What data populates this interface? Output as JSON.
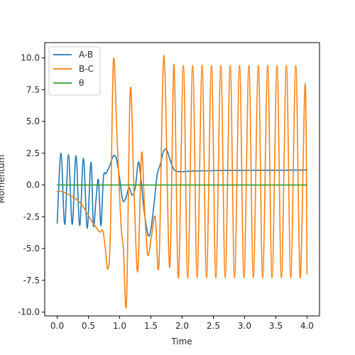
{
  "chart_data": {
    "type": "line",
    "title": "",
    "xlabel": "Time",
    "ylabel": "Momentum",
    "xlim": [
      -0.2,
      4.2
    ],
    "ylim": [
      -10.3,
      11.2
    ],
    "xticks": [
      "0.0",
      "0.5",
      "1.0",
      "1.5",
      "2.0",
      "2.5",
      "3.0",
      "3.5",
      "4.0"
    ],
    "xtick_values": [
      0.0,
      0.5,
      1.0,
      1.5,
      2.0,
      2.5,
      3.0,
      3.5,
      4.0
    ],
    "yticks": [
      "-10.0",
      "-7.5",
      "-5.0",
      "-2.5",
      "0.0",
      "2.5",
      "5.0",
      "7.5",
      "10.0"
    ],
    "ytick_values": [
      -10.0,
      -7.5,
      -5.0,
      -2.5,
      0.0,
      2.5,
      5.0,
      7.5,
      10.0
    ],
    "grid": false,
    "legend_position": "top-left",
    "series": [
      {
        "name": "A-B",
        "color": "#1f77b4",
        "x": [
          0.0,
          0.06,
          0.12,
          0.18,
          0.24,
          0.3,
          0.36,
          0.42,
          0.48,
          0.54,
          0.58,
          0.62,
          0.66,
          0.7,
          0.74,
          0.78,
          0.84,
          0.9,
          0.95,
          1.0,
          1.05,
          1.1,
          1.15,
          1.2,
          1.25,
          1.3,
          1.34,
          1.38,
          1.42,
          1.46,
          1.5,
          1.55,
          1.6,
          1.65,
          1.7,
          1.75,
          1.8,
          1.85,
          1.9,
          2.0,
          2.1,
          2.2,
          2.4,
          2.6,
          2.8,
          3.0,
          3.2,
          3.4,
          3.6,
          3.8,
          4.0
        ],
        "y": [
          -3.0,
          2.5,
          -3.1,
          2.4,
          -3.1,
          2.3,
          -3.2,
          2.1,
          -3.4,
          1.8,
          -3.2,
          -1.2,
          0.4,
          -3.2,
          0.6,
          0.9,
          1.5,
          2.3,
          2.0,
          0.5,
          -1.2,
          -1.0,
          -0.2,
          -0.8,
          -0.2,
          1.8,
          0.5,
          -1.5,
          -3.0,
          -4.0,
          -3.5,
          -1.5,
          0.8,
          1.6,
          2.6,
          2.8,
          2.1,
          1.4,
          1.1,
          1.05,
          1.08,
          1.1,
          1.12,
          1.14,
          1.15,
          1.15,
          1.16,
          1.16,
          1.16,
          1.17,
          1.17
        ]
      },
      {
        "name": "B-C",
        "color": "#ff7f0e",
        "x": [
          0.0,
          0.05,
          0.12,
          0.2,
          0.3,
          0.4,
          0.5,
          0.56,
          0.62,
          0.68,
          0.73,
          0.77,
          0.81,
          0.85,
          0.9,
          0.96,
          1.02,
          1.06,
          1.11,
          1.17,
          1.23,
          1.29,
          1.35,
          1.4,
          1.45,
          1.51,
          1.57,
          1.63,
          1.71,
          1.8,
          1.87,
          1.94,
          2.02,
          2.09,
          2.17,
          2.24,
          2.32,
          2.39,
          2.47,
          2.54,
          2.62,
          2.69,
          2.77,
          2.84,
          2.92,
          2.99,
          3.07,
          3.14,
          3.22,
          3.29,
          3.37,
          3.44,
          3.52,
          3.59,
          3.67,
          3.74,
          3.82,
          3.89,
          3.97,
          4.0
        ],
        "y": [
          -0.5,
          -0.5,
          -0.6,
          -0.8,
          -1.1,
          -1.6,
          -2.4,
          -2.9,
          -3.3,
          -3.7,
          -3.6,
          -5.0,
          -6.6,
          -4.0,
          9.8,
          3.5,
          -3.0,
          -5.0,
          -9.2,
          7.5,
          -0.5,
          -6.8,
          2.5,
          -2.0,
          -5.5,
          -4.0,
          -2.5,
          -6.2,
          10.2,
          -6.5,
          9.5,
          -7.3,
          9.4,
          -7.3,
          9.4,
          -7.3,
          9.4,
          -7.3,
          9.4,
          -7.3,
          9.4,
          -7.3,
          9.4,
          -7.3,
          9.4,
          -7.3,
          9.4,
          -7.3,
          9.4,
          -7.3,
          9.4,
          -7.3,
          9.4,
          -7.3,
          9.4,
          -7.3,
          9.4,
          -7.3,
          8.0,
          -7.0
        ]
      },
      {
        "name": "θ",
        "color": "#2ca02c",
        "x": [
          0.0,
          4.0
        ],
        "y": [
          0.0,
          0.0
        ]
      }
    ]
  }
}
